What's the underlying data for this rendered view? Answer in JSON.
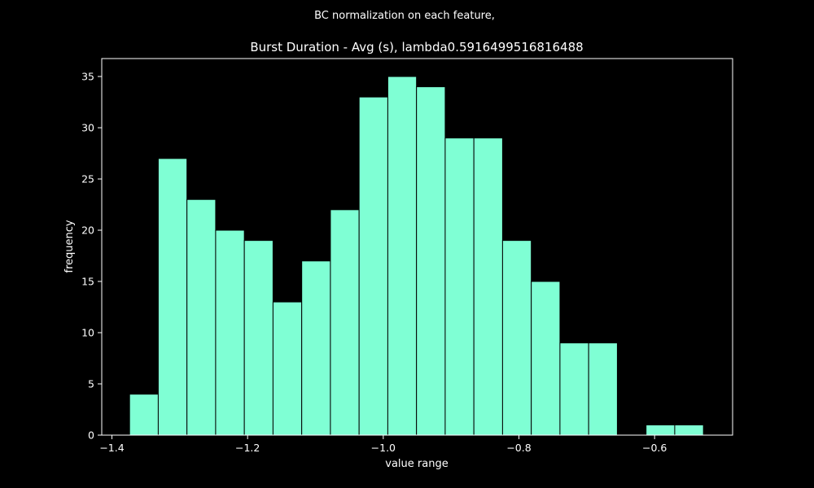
{
  "chart_data": {
    "type": "bar",
    "suptitle": "BC normalization on each feature,",
    "title": "Burst Duration - Avg (s), lambda0.5916499516816488",
    "xlabel": "value range",
    "ylabel": "frequency",
    "xlim": [
      -1.415,
      -0.485
    ],
    "ylim": [
      0,
      36.75
    ],
    "x_ticks": [
      {
        "value": -1.4,
        "label": "−1.4"
      },
      {
        "value": -1.2,
        "label": "−1.2"
      },
      {
        "value": -1.0,
        "label": "−1.0"
      },
      {
        "value": -0.8,
        "label": "−0.8"
      },
      {
        "value": -0.6,
        "label": "−0.6"
      }
    ],
    "y_ticks": [
      {
        "value": 0,
        "label": "0"
      },
      {
        "value": 5,
        "label": "5"
      },
      {
        "value": 10,
        "label": "10"
      },
      {
        "value": 15,
        "label": "15"
      },
      {
        "value": 20,
        "label": "20"
      },
      {
        "value": 25,
        "label": "25"
      },
      {
        "value": 30,
        "label": "30"
      },
      {
        "value": 35,
        "label": "35"
      }
    ],
    "bin_start": -1.374,
    "bin_width": 0.0423,
    "values": [
      4,
      27,
      23,
      20,
      19,
      13,
      17,
      22,
      33,
      35,
      34,
      29,
      29,
      19,
      15,
      9,
      9,
      0,
      1,
      1
    ],
    "grid": false,
    "legend": "none",
    "bar_color": "#7fffd4",
    "bar_edge_color": "#000000",
    "background_color": "#000000",
    "axis_color": "#ffffff",
    "text_color": "#ffffff"
  }
}
